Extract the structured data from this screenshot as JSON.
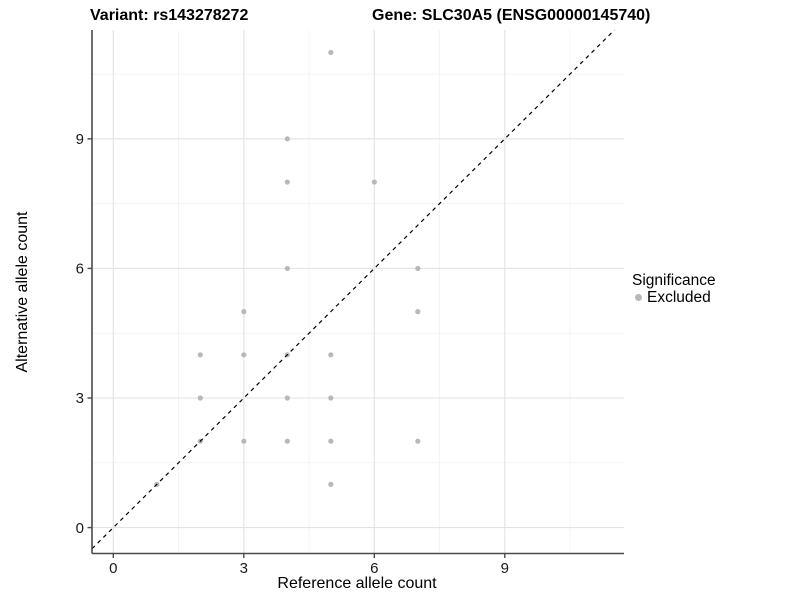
{
  "header": {
    "variant_title": "Variant: rs143278272",
    "gene_title": "Gene: SLC30A5 (ENSG00000145740)"
  },
  "chart_data": {
    "type": "scatter",
    "title": "",
    "xlabel": "Reference allele count",
    "ylabel": "Alternative allele count",
    "xlim": [
      -0.49,
      11.74
    ],
    "ylim": [
      -0.6,
      11.52
    ],
    "xticks": [
      0,
      3,
      6,
      9
    ],
    "yticks": [
      0,
      3,
      6,
      9
    ],
    "minor_ticks_x": [
      1.5,
      4.5,
      7.5,
      10.5
    ],
    "minor_ticks_y": [
      1.5,
      4.5,
      7.5,
      10.5
    ],
    "grid": true,
    "legend_position": "right",
    "identity_line": {
      "show": true,
      "style": "dashed",
      "color": "#000000"
    },
    "series": [
      {
        "name": "Excluded",
        "color": "#b8b8b8",
        "points": [
          [
            1,
            1
          ],
          [
            2,
            2
          ],
          [
            2,
            3
          ],
          [
            2,
            4
          ],
          [
            3,
            2
          ],
          [
            3,
            4
          ],
          [
            3,
            5
          ],
          [
            4,
            2
          ],
          [
            4,
            3
          ],
          [
            4,
            4
          ],
          [
            4,
            6
          ],
          [
            4,
            8
          ],
          [
            4,
            9
          ],
          [
            5,
            1
          ],
          [
            5,
            2
          ],
          [
            5,
            3
          ],
          [
            5,
            4
          ],
          [
            5,
            11
          ],
          [
            6,
            8
          ],
          [
            7,
            2
          ],
          [
            7,
            5
          ],
          [
            7,
            6
          ]
        ]
      }
    ]
  },
  "legend": {
    "title": "Significance",
    "items": [
      {
        "label": "Excluded",
        "color": "#b8b8b8"
      }
    ]
  },
  "colors": {
    "background": "#ffffff",
    "point": "#b8b8b8",
    "grid_major": "#e3e3e3",
    "grid_minor": "#f1f1f1",
    "axis_line": "#4a4a4a",
    "tick_label": "#1a1a1a",
    "identity_line": "#000000"
  }
}
